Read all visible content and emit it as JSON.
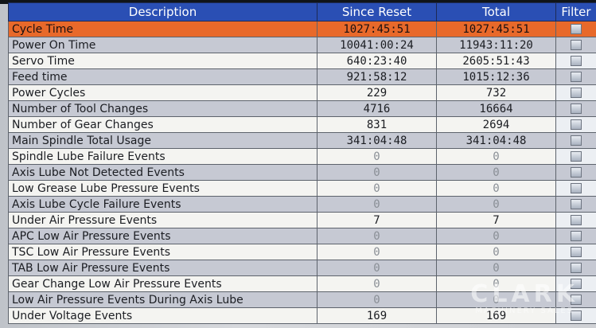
{
  "header": {
    "description": "Description",
    "since_reset": "Since Reset",
    "total": "Total",
    "filter": "Filter"
  },
  "rows": [
    {
      "label": "Cycle Time",
      "since": "1027:45:51",
      "total": "1027:45:51"
    },
    {
      "label": "Power On Time",
      "since": "10041:00:24",
      "total": "11943:11:20"
    },
    {
      "label": "Servo Time",
      "since": "640:23:40",
      "total": "2605:51:43"
    },
    {
      "label": "Feed time",
      "since": "921:58:12",
      "total": "1015:12:36"
    },
    {
      "label": "Power Cycles",
      "since": "229",
      "total": "732"
    },
    {
      "label": "Number of Tool Changes",
      "since": "4716",
      "total": "16664"
    },
    {
      "label": "Number of Gear Changes",
      "since": "831",
      "total": "2694"
    },
    {
      "label": "Main Spindle Total Usage",
      "since": "341:04:48",
      "total": "341:04:48"
    },
    {
      "label": "Spindle Lube Failure Events",
      "since": "0",
      "total": "0"
    },
    {
      "label": "Axis Lube Not Detected Events",
      "since": "0",
      "total": "0"
    },
    {
      "label": "Low Grease Lube Pressure Events",
      "since": "0",
      "total": "0"
    },
    {
      "label": "Axis Lube Cycle Failure Events",
      "since": "0",
      "total": "0"
    },
    {
      "label": "Under Air Pressure Events",
      "since": "7",
      "total": "7"
    },
    {
      "label": "APC Low Air Pressure Events",
      "since": "0",
      "total": "0"
    },
    {
      "label": "TSC Low Air Pressure Events",
      "since": "0",
      "total": "0"
    },
    {
      "label": "TAB Low Air Pressure Events",
      "since": "0",
      "total": "0"
    },
    {
      "label": "Gear Change Low Air Pressure Events",
      "since": "0",
      "total": "0"
    },
    {
      "label": "Low Air Pressure Events During Axis Lube",
      "since": "0",
      "total": "0"
    },
    {
      "label": "Under Voltage Events",
      "since": "169",
      "total": "169"
    }
  ],
  "selected_row_index": 0,
  "watermark": {
    "main": "CLARK",
    "sub": "MACHINERY SALES"
  },
  "colors": {
    "header_bg": "#2a4fb4",
    "selected_row": "#e8692a",
    "alt_row": "#c6c9d3"
  }
}
